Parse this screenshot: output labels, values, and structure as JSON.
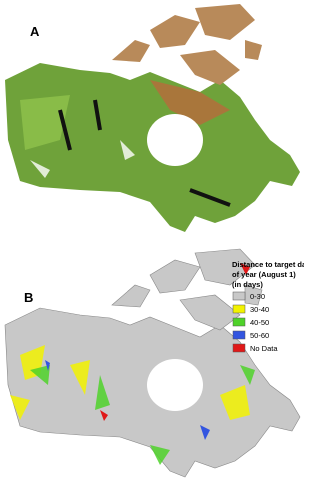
{
  "panels": [
    {
      "label": "A"
    },
    {
      "label": "B"
    }
  ],
  "legend": {
    "title_lines": [
      "Distance to target day",
      "of year (August 1)",
      "(in days)"
    ],
    "items": [
      {
        "label": "0-30",
        "color": "#c8c8c8"
      },
      {
        "label": "30-40",
        "color": "#f2f200"
      },
      {
        "label": "40-50",
        "color": "#4fd22a"
      },
      {
        "label": "50-60",
        "color": "#3355e0"
      },
      {
        "label": "No Data",
        "color": "#e01818"
      }
    ]
  }
}
